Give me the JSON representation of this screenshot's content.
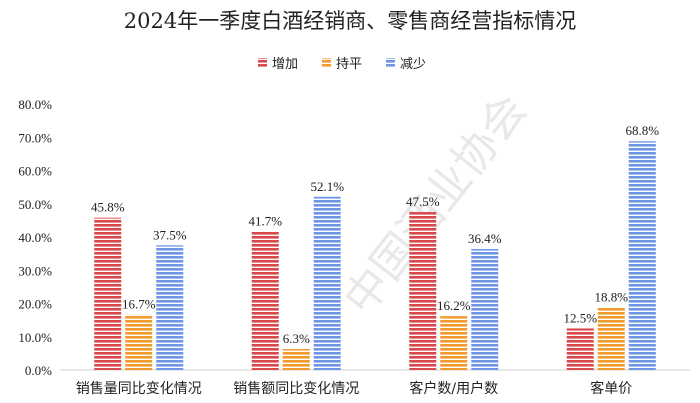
{
  "chart_data": {
    "type": "bar",
    "title": "2024年一季度白酒经销商、零售商经营指标情况",
    "categories": [
      "销售量同比变化情况",
      "销售额同比变化情况",
      "客户数/用户数",
      "客单价"
    ],
    "series": [
      {
        "name": "增加",
        "values": [
          45.8,
          41.7,
          47.5,
          12.5
        ],
        "labels": [
          "45.8%",
          "41.7%",
          "47.5%",
          "12.5%"
        ],
        "color": "#d9484a"
      },
      {
        "name": "持平",
        "values": [
          16.7,
          6.3,
          16.2,
          18.8
        ],
        "labels": [
          "16.7%",
          "6.3%",
          "16.2%",
          "18.8%"
        ],
        "color": "#f39a2c"
      },
      {
        "name": "减少",
        "values": [
          37.5,
          52.1,
          36.4,
          68.8
        ],
        "labels": [
          "37.5%",
          "52.1%",
          "36.4%",
          "68.8%"
        ],
        "color": "#6f96e6"
      }
    ],
    "ylim": [
      0,
      80
    ],
    "yticks": [
      "0.0%",
      "10.0%",
      "20.0%",
      "30.0%",
      "40.0%",
      "50.0%",
      "60.0%",
      "70.0%",
      "80.0%"
    ],
    "legend_position": "top-center",
    "grid": false,
    "bar_fill": "horizontal-stripes"
  },
  "watermark": "中国酒业协会"
}
